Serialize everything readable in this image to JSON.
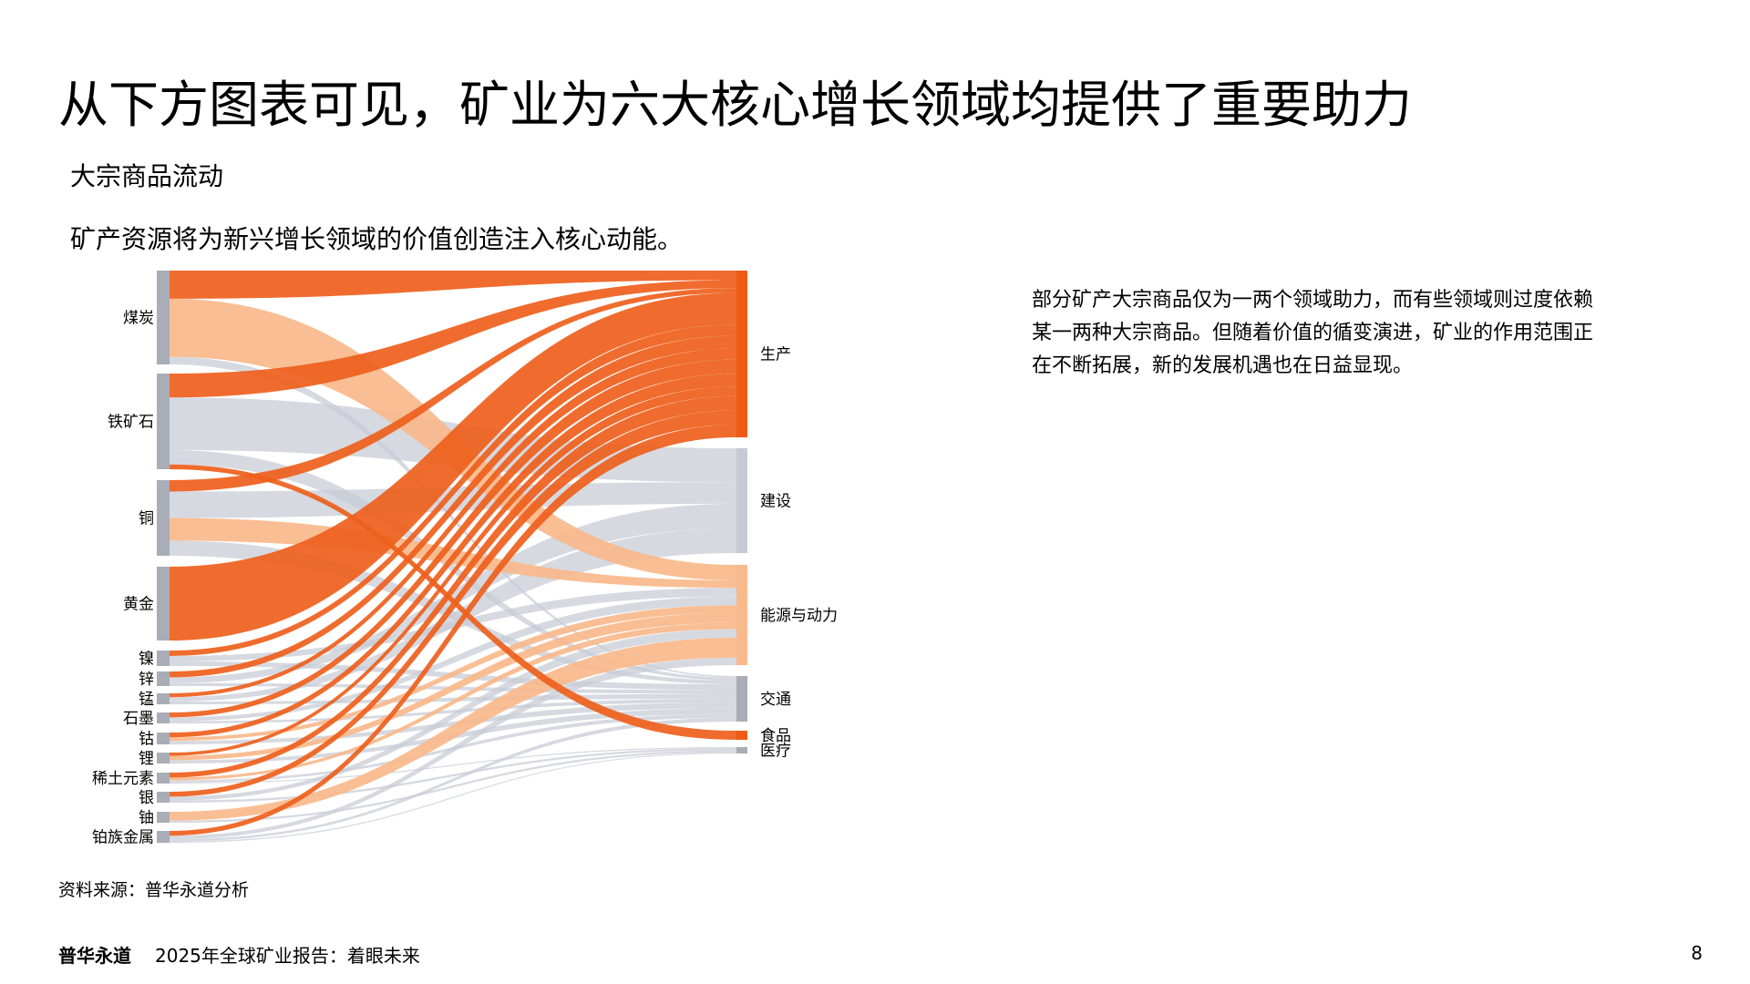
{
  "page": {
    "title": "从下方图表可见，矿业为六大核心增长领域均提供了重要助力",
    "subtitle": "大宗商品流动",
    "lead": "矿产资源将为新兴增长领域的价值创造注入核心动能。",
    "side_text": [
      "部分矿产大宗商品仅为一两个领域助力，而有些领域则过度依赖",
      "某一两种大宗商品。但随着价值的循变演进，矿业的作用范围正",
      "在不断拓展，新的发展机遇也在日益显现。"
    ],
    "source": "资料来源：普华永道分析",
    "footer": {
      "brand": "普华永道",
      "report": "2025年全球矿业报告：着眼未来",
      "page_number": "8"
    }
  },
  "colors": {
    "dark_orange": "#ee5f1c",
    "light_orange": "#f8b98b",
    "gray": "#c6cad4",
    "node_gray": "#a9adb7",
    "node_orange": "#ef5a14"
  },
  "sankey_data": {
    "sources": [
      "煤炭",
      "铁矿石",
      "铜",
      "黄金",
      "镍",
      "锌",
      "锰",
      "石墨",
      "钴",
      "锂",
      "稀土元素",
      "银",
      "铀",
      "铂族金属"
    ],
    "targets": [
      "生产",
      "建设",
      "能源与动力",
      "交通",
      "食品",
      "医疗"
    ],
    "flows": [
      {
        "source": "煤炭",
        "target": "生产",
        "color": "dark_orange",
        "weight": 30
      },
      {
        "source": "煤炭",
        "target": "能源与动力",
        "color": "light_orange",
        "weight": 62
      },
      {
        "source": "煤炭",
        "target": "交通",
        "color": "gray",
        "weight": 8
      },
      {
        "source": "铁矿石",
        "target": "生产",
        "color": "dark_orange",
        "weight": 25
      },
      {
        "source": "铁矿石",
        "target": "建设",
        "color": "gray",
        "weight": 55
      },
      {
        "source": "铁矿石",
        "target": "交通",
        "color": "gray",
        "weight": 15
      },
      {
        "source": "铁矿石",
        "target": "食品",
        "color": "dark_orange",
        "weight": 5
      },
      {
        "source": "铜",
        "target": "生产",
        "color": "dark_orange",
        "weight": 15
      },
      {
        "source": "铜",
        "target": "建设",
        "color": "gray",
        "weight": 35
      },
      {
        "source": "铜",
        "target": "能源与动力",
        "color": "light_orange",
        "weight": 30
      },
      {
        "source": "铜",
        "target": "交通",
        "color": "gray",
        "weight": 20
      },
      {
        "source": "黄金",
        "target": "生产",
        "color": "dark_orange",
        "weight": 100
      },
      {
        "source": "镍",
        "target": "生产",
        "color": "dark_orange",
        "weight": 35
      },
      {
        "source": "镍",
        "target": "能源与动力",
        "color": "gray",
        "weight": 35
      },
      {
        "source": "镍",
        "target": "交通",
        "color": "gray",
        "weight": 30
      },
      {
        "source": "锌",
        "target": "生产",
        "color": "dark_orange",
        "weight": 40
      },
      {
        "source": "锌",
        "target": "建设",
        "color": "gray",
        "weight": 40
      },
      {
        "source": "锌",
        "target": "交通",
        "color": "gray",
        "weight": 20
      },
      {
        "source": "锰",
        "target": "生产",
        "color": "dark_orange",
        "weight": 35
      },
      {
        "source": "锰",
        "target": "建设",
        "color": "gray",
        "weight": 40
      },
      {
        "source": "锰",
        "target": "交通",
        "color": "gray",
        "weight": 25
      },
      {
        "source": "石墨",
        "target": "生产",
        "color": "dark_orange",
        "weight": 45
      },
      {
        "source": "石墨",
        "target": "能源与动力",
        "color": "gray",
        "weight": 35
      },
      {
        "source": "石墨",
        "target": "交通",
        "color": "gray",
        "weight": 20
      },
      {
        "source": "钴",
        "target": "生产",
        "color": "dark_orange",
        "weight": 40
      },
      {
        "source": "钴",
        "target": "能源与动力",
        "color": "light_orange",
        "weight": 30
      },
      {
        "source": "钴",
        "target": "交通",
        "color": "gray",
        "weight": 30
      },
      {
        "source": "锂",
        "target": "生产",
        "color": "dark_orange",
        "weight": 30
      },
      {
        "source": "锂",
        "target": "能源与动力",
        "color": "light_orange",
        "weight": 40
      },
      {
        "source": "锂",
        "target": "交通",
        "color": "gray",
        "weight": 30
      },
      {
        "source": "稀土元素",
        "target": "生产",
        "color": "dark_orange",
        "weight": 45
      },
      {
        "source": "稀土元素",
        "target": "能源与动力",
        "color": "light_orange",
        "weight": 25
      },
      {
        "source": "稀土元素",
        "target": "交通",
        "color": "gray",
        "weight": 20
      },
      {
        "source": "稀土元素",
        "target": "医疗",
        "color": "gray",
        "weight": 10
      },
      {
        "source": "银",
        "target": "生产",
        "color": "dark_orange",
        "weight": 45
      },
      {
        "source": "银",
        "target": "能源与动力",
        "color": "gray",
        "weight": 35
      },
      {
        "source": "银",
        "target": "医疗",
        "color": "gray",
        "weight": 20
      },
      {
        "source": "铀",
        "target": "能源与动力",
        "color": "light_orange",
        "weight": 80
      },
      {
        "source": "铀",
        "target": "医疗",
        "color": "gray",
        "weight": 20
      },
      {
        "source": "铂族金属",
        "target": "生产",
        "color": "dark_orange",
        "weight": 40
      },
      {
        "source": "铂族金属",
        "target": "能源与动力",
        "color": "gray",
        "weight": 30
      },
      {
        "source": "铂族金属",
        "target": "交通",
        "color": "gray",
        "weight": 20
      },
      {
        "source": "铂族金属",
        "target": "医疗",
        "color": "gray",
        "weight": 10
      }
    ]
  }
}
